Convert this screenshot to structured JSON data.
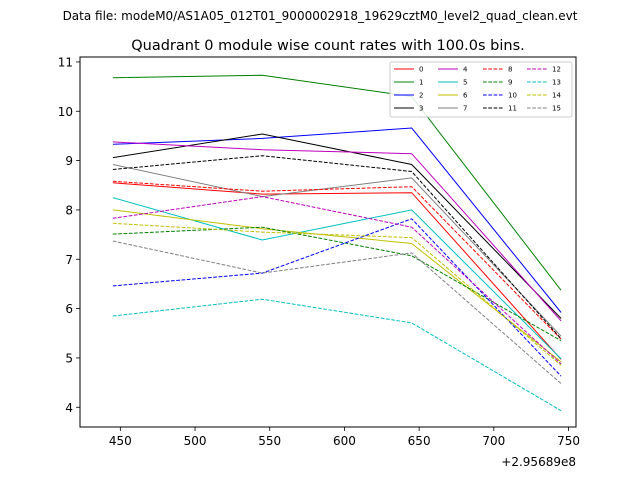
{
  "chart_data": {
    "type": "line",
    "suptitle": "Data file: modeM0/AS1A05_012T01_9000002918_19629cztM0_level2_quad_clean.evt",
    "title": "Quadrant 0 module wise count rates with 100.0s bins.",
    "xlabel": "",
    "ylabel": "",
    "x_offset_label": "+2.95689e8",
    "x": [
      445,
      545,
      645,
      745
    ],
    "xlim": [
      423,
      755
    ],
    "ylim": [
      3.6,
      11.1
    ],
    "xticks": [
      450,
      500,
      550,
      600,
      650,
      700,
      750
    ],
    "yticks": [
      4,
      5,
      6,
      7,
      8,
      9,
      10,
      11
    ],
    "legend_position": "top-right",
    "legend_columns": 4,
    "series": [
      {
        "name": "0",
        "color": "#ff0000",
        "dash": "solid",
        "values": [
          8.55,
          8.32,
          8.35,
          4.97
        ]
      },
      {
        "name": "1",
        "color": "#008000",
        "dash": "solid",
        "values": [
          10.68,
          10.73,
          10.3,
          6.37
        ]
      },
      {
        "name": "2",
        "color": "#0000ff",
        "dash": "solid",
        "values": [
          9.33,
          9.45,
          9.66,
          5.92
        ]
      },
      {
        "name": "3",
        "color": "#000000",
        "dash": "solid",
        "values": [
          9.06,
          9.54,
          8.92,
          5.8
        ]
      },
      {
        "name": "4",
        "color": "#bf00bf",
        "dash": "solid",
        "values": [
          9.38,
          9.22,
          9.14,
          5.75
        ]
      },
      {
        "name": "5",
        "color": "#00bfbf",
        "dash": "solid",
        "values": [
          8.25,
          7.39,
          8.0,
          4.98
        ]
      },
      {
        "name": "6",
        "color": "#bfbf00",
        "dash": "solid",
        "values": [
          8.0,
          7.62,
          7.32,
          4.92
        ]
      },
      {
        "name": "7",
        "color": "#808080",
        "dash": "solid",
        "values": [
          8.92,
          8.27,
          8.65,
          5.44
        ]
      },
      {
        "name": "8",
        "color": "#ff0000",
        "dash": "dashed",
        "values": [
          8.58,
          8.38,
          8.47,
          5.38
        ]
      },
      {
        "name": "9",
        "color": "#008000",
        "dash": "dashed",
        "values": [
          7.51,
          7.65,
          7.07,
          5.35
        ]
      },
      {
        "name": "10",
        "color": "#0000ff",
        "dash": "dashed",
        "values": [
          6.46,
          6.72,
          7.82,
          4.63
        ]
      },
      {
        "name": "11",
        "color": "#000000",
        "dash": "dashed",
        "values": [
          8.82,
          9.1,
          8.78,
          5.39
        ]
      },
      {
        "name": "12",
        "color": "#bf00bf",
        "dash": "dashed",
        "values": [
          7.83,
          8.27,
          7.65,
          4.88
        ]
      },
      {
        "name": "13",
        "color": "#00bfbf",
        "dash": "dashed",
        "values": [
          5.85,
          6.19,
          5.71,
          3.93
        ]
      },
      {
        "name": "14",
        "color": "#bfbf00",
        "dash": "dashed",
        "values": [
          7.73,
          7.55,
          7.44,
          4.85
        ]
      },
      {
        "name": "15",
        "color": "#808080",
        "dash": "dashed",
        "values": [
          7.37,
          6.72,
          7.13,
          4.48
        ]
      }
    ]
  }
}
